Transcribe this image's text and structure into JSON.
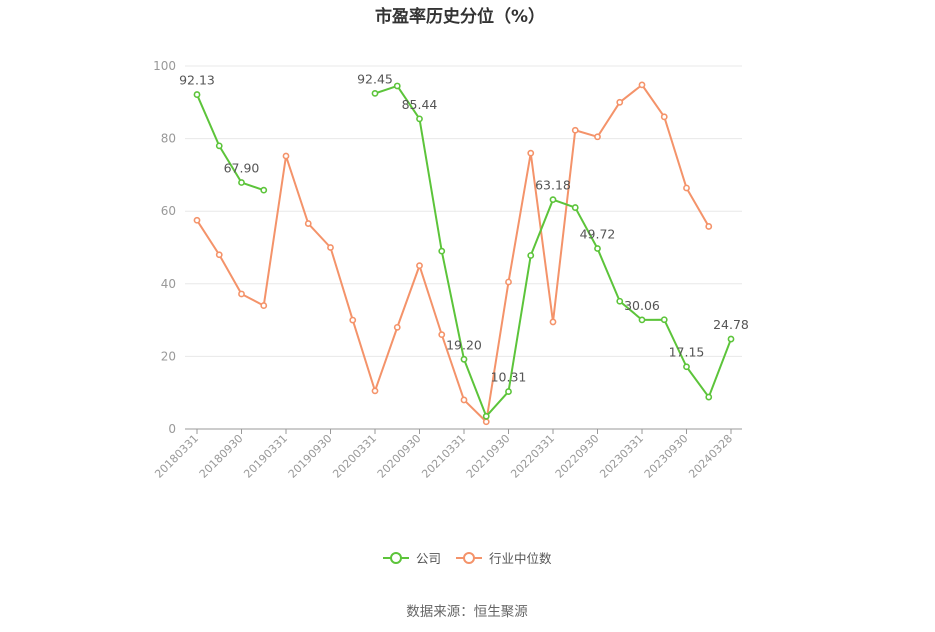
{
  "chart_data": {
    "type": "line",
    "title": "市盈率历史分位（%）",
    "source": "数据来源：恒生聚源",
    "ylim": [
      0,
      100
    ],
    "y_ticks": [
      "0",
      "20",
      "40",
      "60",
      "80",
      "100"
    ],
    "grid": true,
    "legend_position": "bottom",
    "x": [
      "20180331",
      "20180630",
      "20180930",
      "20181231",
      "20190331",
      "20190630",
      "20190930",
      "20191231",
      "20200331",
      "20200630",
      "20200930",
      "20201231",
      "20210331",
      "20210630",
      "20210930",
      "20211231",
      "20220331",
      "20220630",
      "20220930",
      "20221231",
      "20230331",
      "20230630",
      "20230930",
      "20231231",
      "20240328"
    ],
    "x_tick_labels": [
      "20180331",
      "20180930",
      "20190331",
      "20190930",
      "20200331",
      "20200930",
      "20210331",
      "20210930",
      "20220331",
      "20220930",
      "20230331",
      "20230930",
      "20240328"
    ],
    "series": [
      {
        "name": "公司",
        "color": "#5cc43a",
        "values": [
          92.13,
          78.0,
          67.9,
          65.8,
          null,
          null,
          null,
          null,
          92.45,
          94.5,
          85.44,
          49.0,
          19.2,
          3.5,
          10.31,
          47.8,
          63.18,
          61.0,
          49.72,
          35.2,
          30.06,
          30.1,
          17.15,
          8.8,
          24.78
        ],
        "labels": [
          "92.13",
          null,
          "67.90",
          null,
          null,
          null,
          null,
          null,
          "92.45",
          null,
          "85.44",
          null,
          "19.20",
          null,
          "10.31",
          null,
          "63.18",
          null,
          "49.72",
          null,
          "30.06",
          null,
          "17.15",
          null,
          "24.78"
        ]
      },
      {
        "name": "行业中位数",
        "color": "#f4936a",
        "values": [
          57.5,
          48.0,
          37.2,
          34.0,
          75.2,
          56.6,
          50.0,
          30.0,
          10.5,
          28.0,
          45.0,
          26.0,
          8.0,
          2.0,
          40.5,
          76.0,
          29.5,
          82.3,
          80.5,
          90.0,
          94.8,
          86.0,
          66.4,
          55.8,
          null
        ]
      }
    ]
  }
}
